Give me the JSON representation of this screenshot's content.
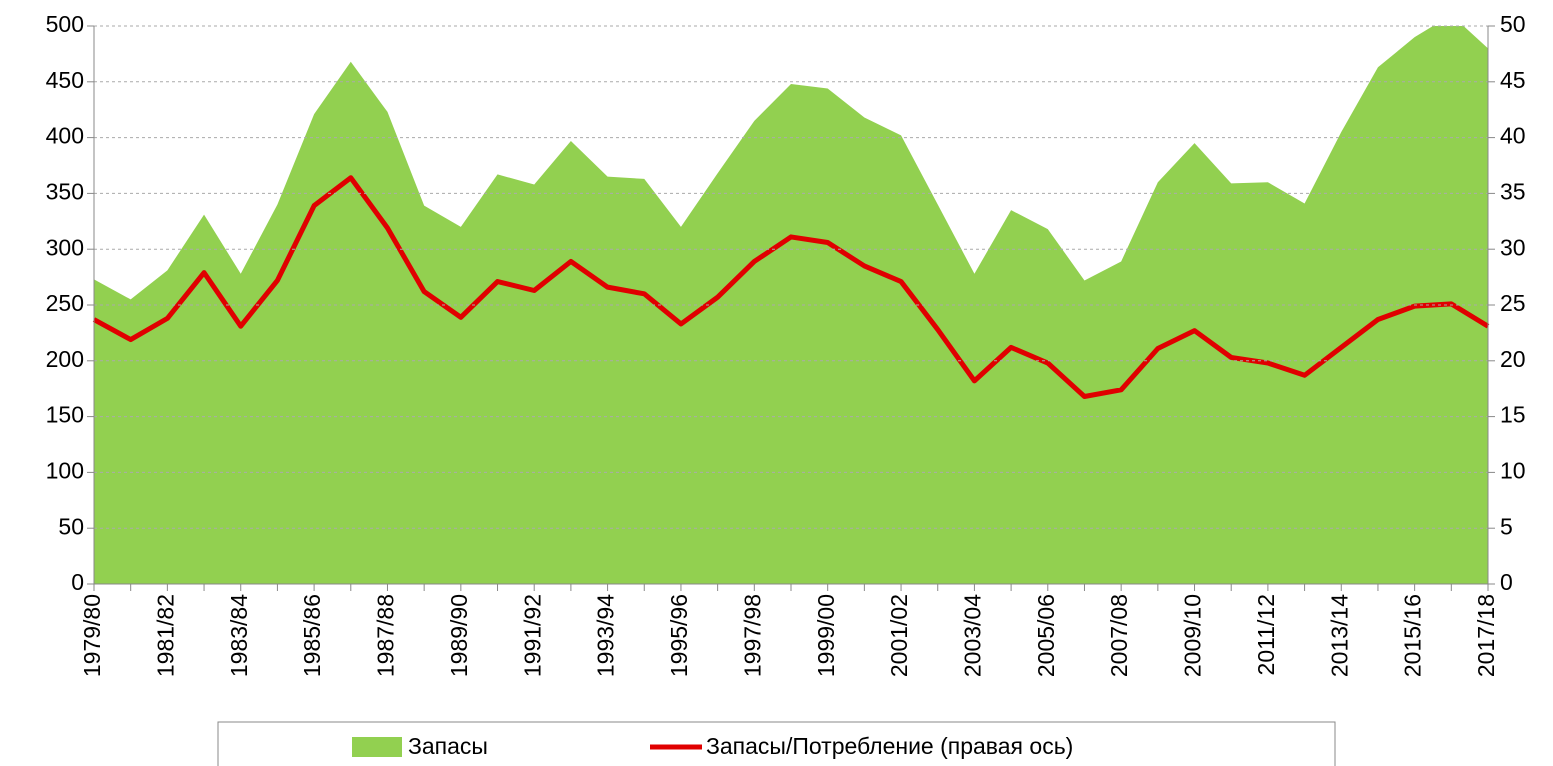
{
  "chart_data": {
    "type": "area-line",
    "categories": [
      "1979/80",
      null,
      "1981/82",
      null,
      "1983/84",
      null,
      "1985/86",
      null,
      "1987/88",
      null,
      "1989/90",
      null,
      "1991/92",
      null,
      "1993/94",
      null,
      "1995/96",
      null,
      "1997/98",
      null,
      "1999/00",
      null,
      "2001/02",
      null,
      "2003/04",
      null,
      "2005/06",
      null,
      "2007/08",
      null,
      "2009/10",
      null,
      "2011/12",
      null,
      "2013/14",
      null,
      "2015/16",
      null,
      "2017/18"
    ],
    "series": [
      {
        "name": "Запасы",
        "type": "area",
        "color": "#92d050",
        "axis": "y",
        "values": [
          273,
          255,
          281,
          331,
          278,
          340,
          421,
          468,
          423,
          339,
          320,
          367,
          358,
          397,
          365,
          363,
          320,
          368,
          415,
          448,
          444,
          418,
          402,
          340,
          278,
          335,
          318,
          272,
          289,
          360,
          395,
          359,
          360,
          341,
          405,
          463,
          490,
          510,
          480
        ]
      },
      {
        "name": "Запасы/Потребление (правая ось)",
        "type": "line",
        "color": "#e00000",
        "axis": "y2",
        "values": [
          23.7,
          21.9,
          23.8,
          27.9,
          23.1,
          27.2,
          33.9,
          36.4,
          31.9,
          26.2,
          23.9,
          27.1,
          26.3,
          28.9,
          26.6,
          26.0,
          23.3,
          25.7,
          28.9,
          31.1,
          30.6,
          28.5,
          27.1,
          22.8,
          18.2,
          21.2,
          19.8,
          16.8,
          17.4,
          21.1,
          22.7,
          20.3,
          19.8,
          18.7,
          21.2,
          23.7,
          24.9,
          25.1,
          23.1
        ]
      }
    ],
    "ylim": [
      0,
      500
    ],
    "yticks": [
      0,
      50,
      100,
      150,
      200,
      250,
      300,
      350,
      400,
      450,
      500
    ],
    "y2lim": [
      0,
      50
    ],
    "y2ticks": [
      0,
      5,
      10,
      15,
      20,
      25,
      30,
      35,
      40,
      45,
      50
    ],
    "grid": true,
    "legend": "bottom"
  }
}
